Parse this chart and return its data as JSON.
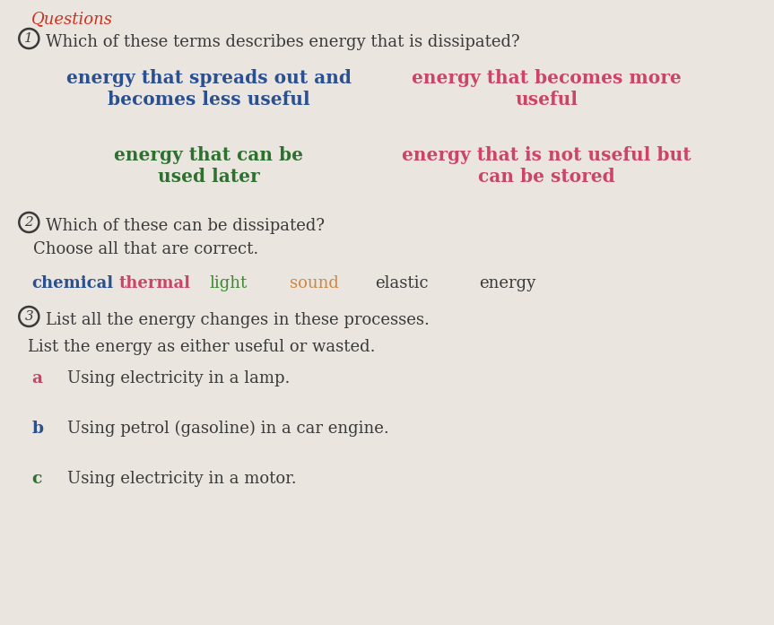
{
  "background_color": "#eae5df",
  "title": "Questions",
  "title_color": "#cc3322",
  "title_fontsize": 13,
  "q1_text": "Which of these terms describes energy that is dissipated?",
  "body_color": "#3a3a3a",
  "body_fontsize": 13,
  "option_A_lines": [
    "energy that spreads out and",
    "becomes less useful"
  ],
  "option_A_color": "#2a5090",
  "option_B_lines": [
    "energy that becomes more",
    "useful"
  ],
  "option_B_color": "#cc4466",
  "option_C_lines": [
    "energy that can be",
    "used later"
  ],
  "option_C_color": "#2d7030",
  "option_D_lines": [
    "energy that is not useful but",
    "can be stored"
  ],
  "option_D_color": "#cc4466",
  "option_fontsize": 14.5,
  "q2_main": "Which of these can be dissipated?",
  "q2_sub": "Choose all that are correct.",
  "dissipated_terms": [
    {
      "text": "chemical",
      "color": "#2a5090",
      "bold": true
    },
    {
      "text": "thermal",
      "color": "#cc4466",
      "bold": true
    },
    {
      "text": "light",
      "color": "#3a8a30",
      "bold": false
    },
    {
      "text": "sound",
      "color": "#cc8844",
      "bold": false
    },
    {
      "text": "elastic",
      "color": "#3a3a3a",
      "bold": false
    },
    {
      "text": "energy",
      "color": "#3a3a3a",
      "bold": false
    }
  ],
  "dissipated_fontsize": 13,
  "q3_main": "List all the energy changes in these processes.",
  "q3_sub": "List the energy as either useful or wasted.",
  "q3_items": [
    {
      "label": "a",
      "label_color": "#cc4466",
      "text": "Using electricity in a lamp."
    },
    {
      "label": "b",
      "label_color": "#2a5090",
      "text": "Using petrol (gasoline) in a car engine."
    },
    {
      "label": "c",
      "label_color": "#2d7030",
      "text": "Using electricity in a motor."
    }
  ]
}
